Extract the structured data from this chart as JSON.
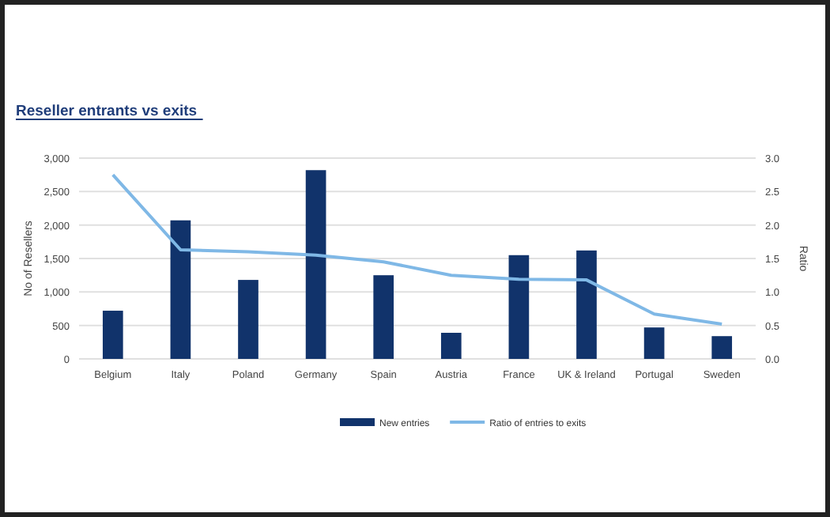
{
  "chart_data": {
    "type": "bar",
    "title": "Reseller entrants vs exits",
    "ylabel": "No of Resellers",
    "y2label": "Ratio",
    "categories": [
      "Belgium",
      "Italy",
      "Poland",
      "Germany",
      "Spain",
      "Austria",
      "France",
      "UK & Ireland",
      "Portugal",
      "Sweden"
    ],
    "series": [
      {
        "name": "New entries",
        "color": "#11336b",
        "values": [
          720,
          2070,
          1180,
          2820,
          1250,
          390,
          1550,
          1620,
          470,
          340
        ]
      },
      {
        "name": "Ratio of entries to exits",
        "type": "line",
        "axis": "y2",
        "color": "#7fb8e6",
        "values": [
          2.75,
          1.63,
          1.6,
          1.55,
          1.45,
          1.25,
          1.19,
          1.18,
          0.67,
          0.52
        ]
      }
    ],
    "ylim": [
      0,
      3000
    ],
    "yticks": [
      {
        "value": 0,
        "label": "0"
      },
      {
        "value": 500,
        "label": "500"
      },
      {
        "value": 1000,
        "label": "1,000"
      },
      {
        "value": 1500,
        "label": "1,500"
      },
      {
        "value": 2000,
        "label": "2,000"
      },
      {
        "value": 2500,
        "label": "2,500"
      },
      {
        "value": 3000,
        "label": "3,000"
      }
    ],
    "y2lim": [
      0,
      3
    ],
    "y2ticks": [
      {
        "value": 0,
        "label": "0.0"
      },
      {
        "value": 0.5,
        "label": "0.5"
      },
      {
        "value": 1,
        "label": "1.0"
      },
      {
        "value": 1.5,
        "label": "1.5"
      },
      {
        "value": 2,
        "label": "2.0"
      },
      {
        "value": 2.5,
        "label": "2.5"
      },
      {
        "value": 3,
        "label": "3.0"
      }
    ],
    "grid": "y",
    "legend": "bottom",
    "marker": "none"
  }
}
